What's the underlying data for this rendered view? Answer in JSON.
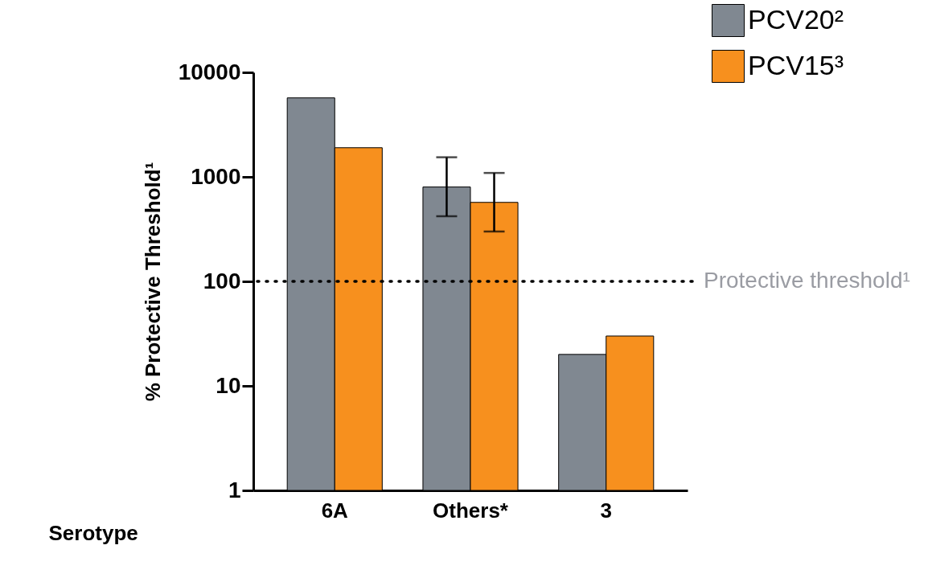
{
  "chart_data": {
    "type": "bar",
    "xlabel": "Serotype",
    "ylabel": "% Protective Threshold¹",
    "categories": [
      "6A",
      "Others*",
      "3"
    ],
    "series": [
      {
        "name": "PCV20²",
        "color": "#808891",
        "values": [
          5700,
          800,
          20
        ],
        "errors": [
          null,
          [
            420,
            1540
          ],
          null
        ]
      },
      {
        "name": "PCV15³",
        "color": "#f7901e",
        "values": [
          1900,
          570,
          30
        ],
        "errors": [
          null,
          [
            300,
            1090
          ],
          null
        ]
      }
    ],
    "log": true,
    "ylim": [
      1,
      10000
    ],
    "yticks": [
      1,
      10,
      100,
      1000,
      10000
    ],
    "grid": false,
    "legend": "top right",
    "ref_lines": [
      {
        "axis": "y",
        "value": 100,
        "label": "Protective threshold¹",
        "color": "#000000",
        "line_style": "dotted"
      }
    ]
  }
}
